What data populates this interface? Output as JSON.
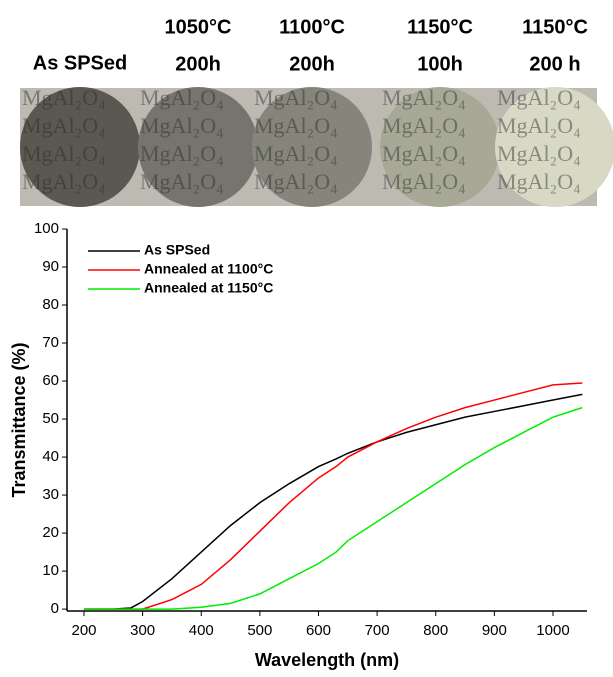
{
  "samples": [
    {
      "lines": [
        "As SPSed"
      ],
      "tone": "#5b5851"
    },
    {
      "lines": [
        "1050°C",
        "200h"
      ],
      "tone": "#77746d"
    },
    {
      "lines": [
        "1100°C",
        "200h"
      ],
      "tone": "#86857b"
    },
    {
      "lines": [
        "1150°C",
        "100h"
      ],
      "tone": "#a7a996"
    },
    {
      "lines": [
        "1150°C",
        "200 h"
      ],
      "tone": "#d8d9c5"
    }
  ],
  "photo_text": "MgAl₂O₄",
  "chart_data": {
    "type": "line",
    "x_label": "Wavelength (nm)",
    "y_label": "Transmittance (%)",
    "x": [
      200,
      250,
      280,
      300,
      350,
      400,
      450,
      500,
      550,
      600,
      630,
      650,
      700,
      750,
      800,
      850,
      900,
      950,
      1000,
      1050
    ],
    "series": [
      {
        "name": "As SPSed",
        "color": "#000000",
        "values": [
          0,
          0,
          0.3,
          2,
          8,
          15,
          22,
          28,
          33,
          37.5,
          39.5,
          41,
          44,
          46.5,
          48.5,
          50.5,
          52,
          53.5,
          55,
          56.5
        ]
      },
      {
        "name": "Annealed at 1100°C",
        "color": "#ff0000",
        "values": [
          0,
          0,
          0,
          0,
          2.5,
          6.5,
          13,
          20.5,
          28,
          34.5,
          37.5,
          40,
          44,
          47.5,
          50.5,
          53,
          55,
          57,
          59,
          59.5
        ]
      },
      {
        "name": "Annealed at 1150°C",
        "color": "#00ee00",
        "values": [
          0,
          0,
          0,
          0,
          0,
          0.5,
          1.5,
          4,
          8,
          12,
          15,
          18,
          23,
          28,
          33,
          38,
          42.5,
          46.5,
          50.5,
          53
        ]
      }
    ],
    "xlim": [
      171,
      1058
    ],
    "ylim": [
      -0.5,
      100
    ],
    "xticks": [
      200,
      300,
      400,
      500,
      600,
      700,
      800,
      900,
      1000
    ],
    "yticks": [
      0,
      10,
      20,
      30,
      40,
      50,
      60,
      70,
      80,
      90,
      100
    ],
    "legend": "top-left",
    "grid": false
  }
}
